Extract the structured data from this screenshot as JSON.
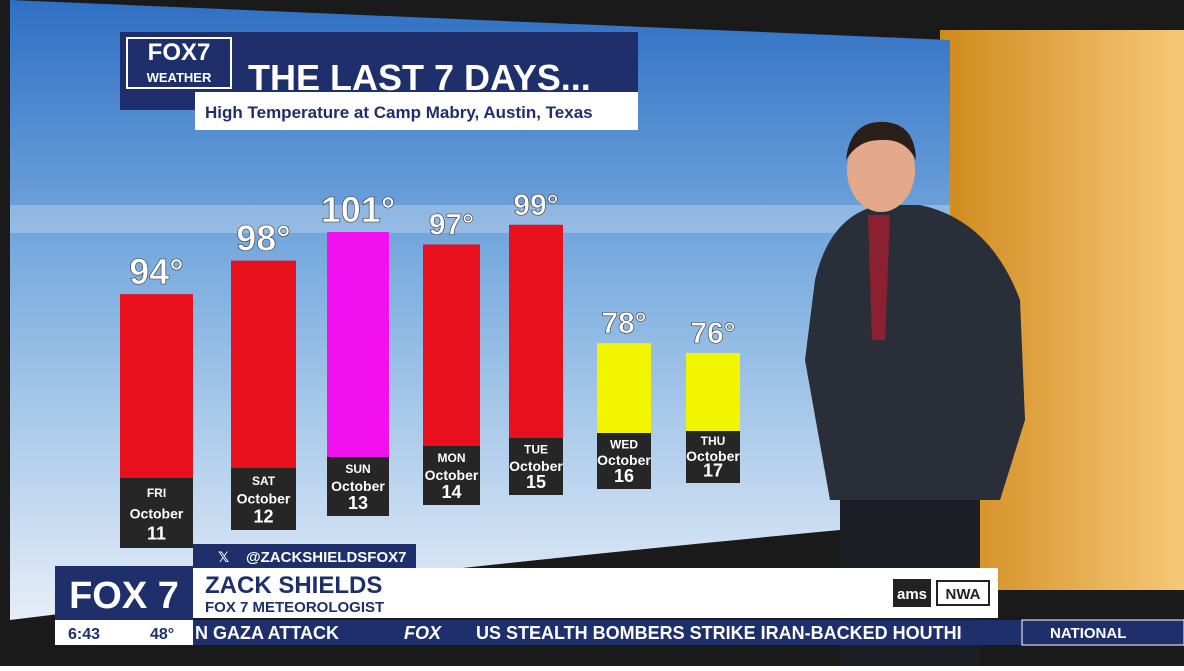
{
  "chart_data": {
    "type": "bar",
    "title": "THE LAST 7 DAYS...",
    "subtitle": "High Temperature at Camp Mabry, Austin, Texas",
    "categories": [
      {
        "day": "FRI",
        "month": "October",
        "date": "11"
      },
      {
        "day": "SAT",
        "month": "October",
        "date": "12"
      },
      {
        "day": "SUN",
        "month": "October",
        "date": "13"
      },
      {
        "day": "MON",
        "month": "October",
        "date": "14"
      },
      {
        "day": "TUE",
        "month": "October",
        "date": "15"
      },
      {
        "day": "WED",
        "month": "October",
        "date": "16"
      },
      {
        "day": "THU",
        "month": "October",
        "date": "17"
      }
    ],
    "values": [
      94,
      98,
      101,
      97,
      99,
      78,
      76
    ],
    "value_labels": [
      "94°",
      "98°",
      "101°",
      "97°",
      "99°",
      "78°",
      "76°"
    ],
    "colors": [
      "#e8101c",
      "#e8101c",
      "#f010f0",
      "#e8101c",
      "#e8101c",
      "#f2f500",
      "#f2f500"
    ]
  },
  "overlay": {
    "logo": {
      "brand": "FOX7",
      "section": "WEATHER"
    },
    "social": "@ZACKSHIELDSFOX7",
    "name": "ZACK SHIELDS",
    "role": "FOX 7 METEOROLOGIST",
    "station": "FOX 7",
    "time": "6:43",
    "temperature": "48°",
    "badges": [
      "ams",
      "NWA"
    ],
    "ticker": [
      "N GAZA ATTACK",
      "FOX",
      "US STEALTH BOMBERS STRIKE IRAN-BACKED HOUTHI"
    ],
    "ticker_section": "NATIONAL"
  }
}
